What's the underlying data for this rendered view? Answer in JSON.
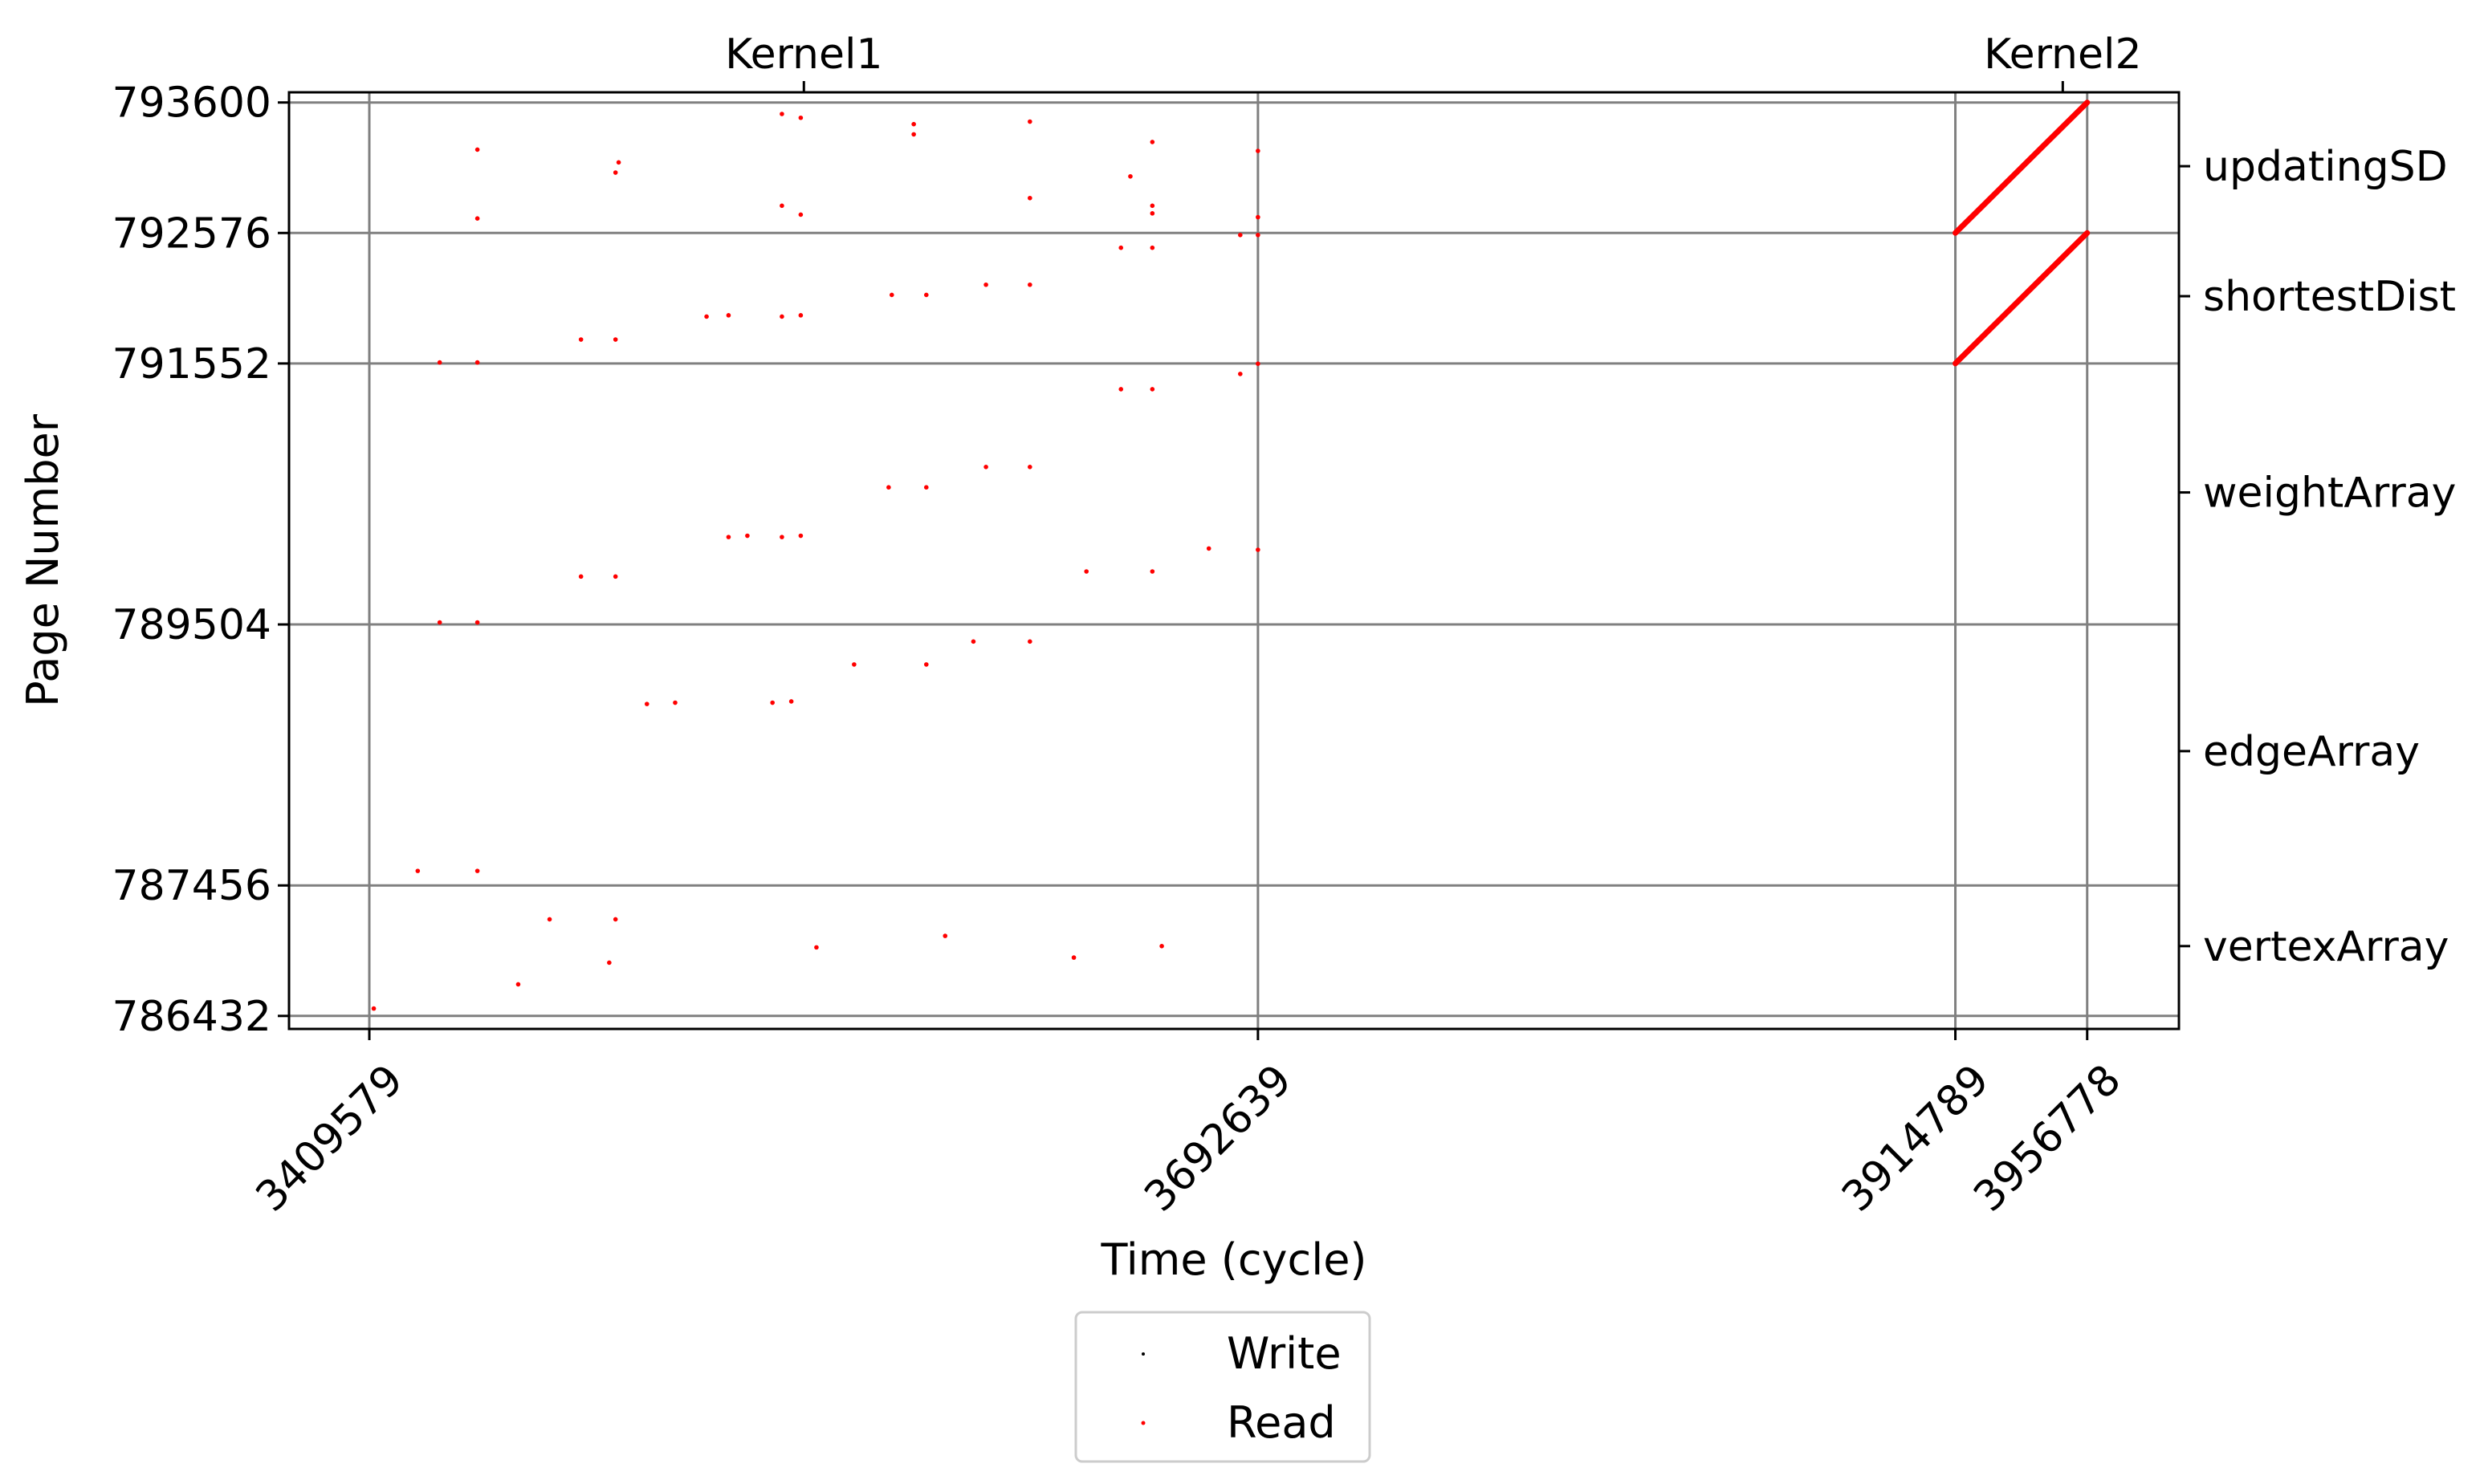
{
  "chart_data": {
    "type": "scatter",
    "xlabel": "Time (cycle)",
    "ylabel": "Page Number",
    "xlim": [
      3384000,
      3986000
    ],
    "ylim": [
      786330,
      793680
    ],
    "x_ticks": [
      3409579,
      3692639,
      3914789,
      3956778
    ],
    "x_tick_labels": [
      "3409579",
      "3692639",
      "3914789",
      "3956778"
    ],
    "y_ticks": [
      786432,
      787456,
      789504,
      791552,
      792576,
      793600
    ],
    "y_tick_labels": [
      "786432",
      "787456",
      "789504",
      "791552",
      "792576",
      "793600"
    ],
    "top_axis": {
      "ticks": [
        3548000,
        3949000
      ],
      "labels": [
        "Kernel1",
        "Kernel2"
      ]
    },
    "right_axis": {
      "ticks": [
        793100,
        792080,
        790540,
        788510,
        786980
      ],
      "labels": [
        "updatingSD",
        "shortestDist",
        "weightArray",
        "edgeArray",
        "vertexArray"
      ]
    },
    "grid": true,
    "legend_position": "bottom-center",
    "series": [
      {
        "name": "Write",
        "color": "#000000",
        "points": []
      },
      {
        "name": "Read",
        "color": "#ff0000",
        "points": [
          [
            3411000,
            786490
          ],
          [
            3425000,
            787570
          ],
          [
            3432000,
            789520
          ],
          [
            3432000,
            791560
          ],
          [
            3444000,
            793230
          ],
          [
            3444000,
            792690
          ],
          [
            3444000,
            791560
          ],
          [
            3444000,
            789520
          ],
          [
            3444000,
            787570
          ],
          [
            3457000,
            786680
          ],
          [
            3467000,
            787190
          ],
          [
            3477000,
            789880
          ],
          [
            3477000,
            791740
          ],
          [
            3486000,
            786850
          ],
          [
            3488000,
            793050
          ],
          [
            3489000,
            793130
          ],
          [
            3488000,
            791740
          ],
          [
            3488000,
            789880
          ],
          [
            3488000,
            787190
          ],
          [
            3498000,
            788880
          ],
          [
            3507000,
            788890
          ],
          [
            3517000,
            791920
          ],
          [
            3524000,
            791930
          ],
          [
            3524000,
            790190
          ],
          [
            3530000,
            790200
          ],
          [
            3538000,
            788890
          ],
          [
            3541000,
            793510
          ],
          [
            3541000,
            792790
          ],
          [
            3541000,
            791920
          ],
          [
            3541000,
            790190
          ],
          [
            3544000,
            788900
          ],
          [
            3547000,
            793480
          ],
          [
            3547000,
            792720
          ],
          [
            3547000,
            791930
          ],
          [
            3547000,
            790200
          ],
          [
            3552000,
            786970
          ],
          [
            3564000,
            789190
          ],
          [
            3575000,
            790580
          ],
          [
            3576000,
            792090
          ],
          [
            3583000,
            793350
          ],
          [
            3583000,
            793430
          ],
          [
            3587000,
            792090
          ],
          [
            3587000,
            789190
          ],
          [
            3587000,
            790580
          ],
          [
            3593000,
            787060
          ],
          [
            3602000,
            789370
          ],
          [
            3606000,
            790740
          ],
          [
            3606000,
            792170
          ],
          [
            3620000,
            793450
          ],
          [
            3620000,
            792850
          ],
          [
            3620000,
            790740
          ],
          [
            3620000,
            792170
          ],
          [
            3620000,
            789370
          ],
          [
            3634000,
            786890
          ],
          [
            3638000,
            789920
          ],
          [
            3649000,
            791350
          ],
          [
            3649000,
            792460
          ],
          [
            3652000,
            793020
          ],
          [
            3659000,
            793290
          ],
          [
            3659000,
            792790
          ],
          [
            3659000,
            792730
          ],
          [
            3659000,
            792460
          ],
          [
            3659000,
            791350
          ],
          [
            3659000,
            789920
          ],
          [
            3662000,
            786980
          ],
          [
            3677000,
            790100
          ],
          [
            3687000,
            791470
          ],
          [
            3687000,
            792560
          ],
          [
            3692639,
            792700
          ],
          [
            3692639,
            792560
          ],
          [
            3692639,
            791550
          ],
          [
            3692639,
            790090
          ],
          [
            3692639,
            793220
          ]
        ],
        "segments": [
          [
            [
              3914789,
              792576
            ],
            [
              3956778,
              793600
            ]
          ],
          [
            [
              3914789,
              791552
            ],
            [
              3956778,
              792576
            ]
          ]
        ]
      }
    ]
  }
}
